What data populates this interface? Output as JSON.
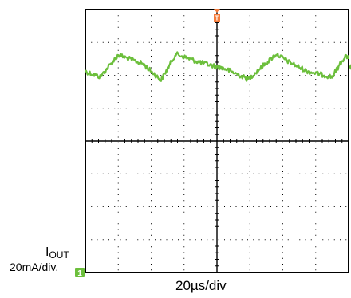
{
  "chart_data": {
    "type": "line",
    "title": "",
    "xlabel": "20µs/div",
    "ylabel": "",
    "channel": {
      "name_main": "I",
      "name_sub": "OUT",
      "scale": "20mA/div.",
      "ground_marker": "1",
      "trigger_marker": "T"
    },
    "x_divisions": 8,
    "y_divisions": 8,
    "time_per_div_us": 20,
    "current_per_div_mA": 20,
    "xlim_us": [
      0,
      160
    ],
    "ylim_div": [
      0,
      8
    ],
    "grid": true,
    "series": [
      {
        "name": "",
        "color": "#6cbf3c",
        "x_us": [
          0,
          9,
          20,
          35,
          46,
          55,
          69,
          85,
          99,
          116,
          124,
          135,
          150,
          158,
          160
        ],
        "y_div": [
          6.12,
          5.95,
          6.62,
          6.35,
          5.85,
          6.65,
          6.4,
          6.2,
          5.88,
          6.65,
          6.4,
          6.12,
          5.95,
          6.6,
          6.5
        ]
      }
    ]
  },
  "colors": {
    "grid_frame": "#000000",
    "trace": "#6cbf3c",
    "trigger": "#f47c3c"
  }
}
